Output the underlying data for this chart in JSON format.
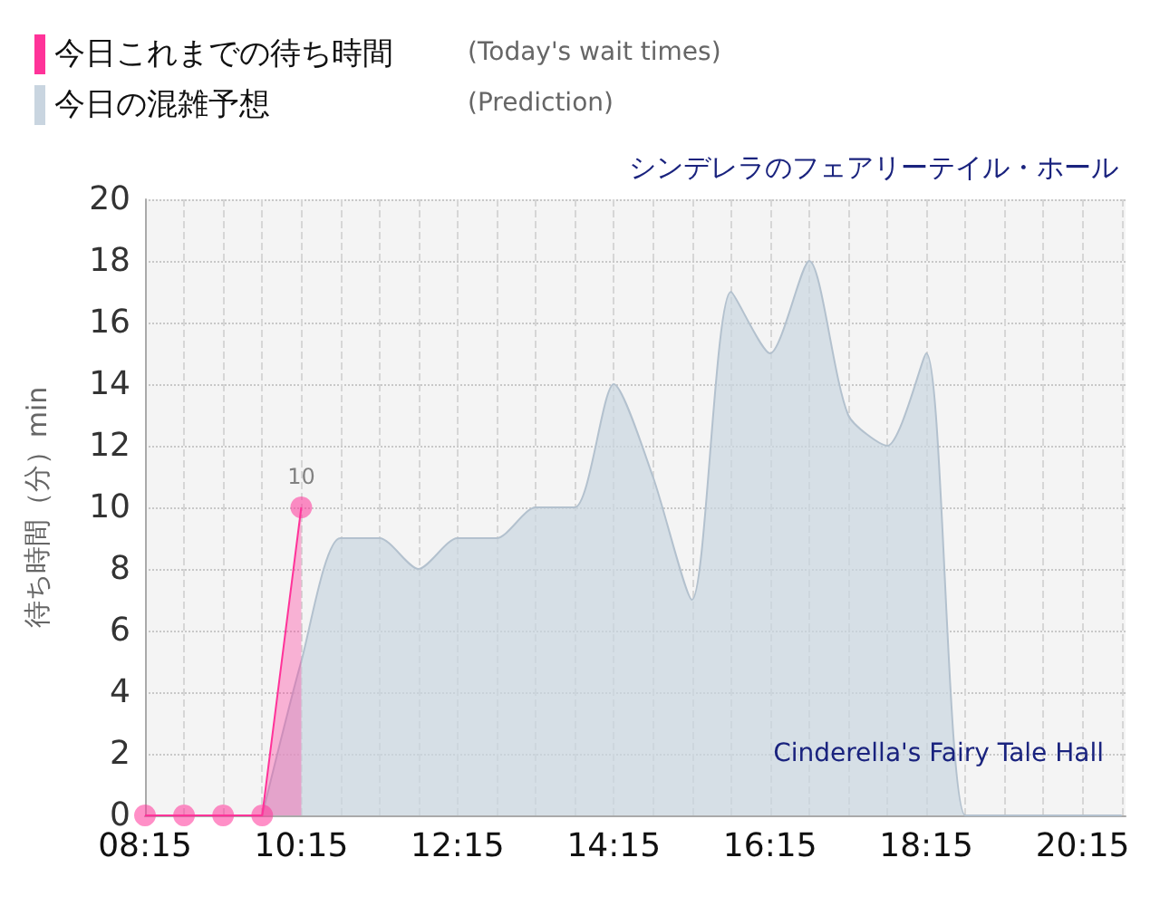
{
  "chart_data": {
    "type": "area",
    "title": "シンデレラのフェアリーテイル・ホール",
    "subtitle": "Cinderella's Fairy Tale Hall",
    "ylabel": "待ち時間（分）min",
    "annotations": [
      "(Today's wait times)",
      "(Prediction)"
    ],
    "xlim": [
      8.25,
      20.8
    ],
    "xticks": [
      {
        "value": 8.25,
        "label": "08:15"
      },
      {
        "value": 8.75,
        "label": null
      },
      {
        "value": 9.25,
        "label": null
      },
      {
        "value": 9.75,
        "label": null
      },
      {
        "value": 10.25,
        "label": "10:15"
      },
      {
        "value": 10.75,
        "label": null
      },
      {
        "value": 11.25,
        "label": null
      },
      {
        "value": 11.75,
        "label": null
      },
      {
        "value": 12.25,
        "label": "12:15"
      },
      {
        "value": 12.75,
        "label": null
      },
      {
        "value": 13.25,
        "label": null
      },
      {
        "value": 13.75,
        "label": null
      },
      {
        "value": 14.25,
        "label": "14:15"
      },
      {
        "value": 14.75,
        "label": null
      },
      {
        "value": 15.25,
        "label": null
      },
      {
        "value": 15.75,
        "label": null
      },
      {
        "value": 16.25,
        "label": "16:15"
      },
      {
        "value": 16.75,
        "label": null
      },
      {
        "value": 17.25,
        "label": null
      },
      {
        "value": 17.75,
        "label": null
      },
      {
        "value": 18.25,
        "label": "18:15"
      },
      {
        "value": 18.75,
        "label": null
      },
      {
        "value": 19.25,
        "label": null
      },
      {
        "value": 19.75,
        "label": null
      },
      {
        "value": 20.25,
        "label": "20:15"
      },
      {
        "value": 20.75,
        "label": null
      }
    ],
    "ylim": [
      0,
      20
    ],
    "yticks": [
      0,
      2,
      4,
      6,
      8,
      10,
      12,
      14,
      16,
      18,
      20
    ],
    "series": [
      {
        "name": "今日の混雑予想",
        "marker": "none",
        "color": "#c9d5e0",
        "x": [
          9.75,
          10.25,
          10.75,
          11.25,
          11.75,
          12.25,
          12.75,
          13.25,
          13.75,
          14.25,
          14.75,
          15.25,
          15.75,
          16.25,
          16.75,
          17.25,
          17.75,
          18.25,
          18.75,
          19.25,
          19.75,
          20.25,
          20.75
        ],
        "values": [
          0,
          5,
          9,
          9,
          8,
          9,
          9,
          10,
          10,
          14,
          11,
          7,
          17,
          15,
          18,
          13,
          12,
          15,
          0,
          0,
          0,
          0,
          0
        ]
      },
      {
        "name": "今日これまでの待ち時間",
        "marker": "circle",
        "color": "#ff3399",
        "x": [
          8.25,
          8.75,
          9.25,
          9.75,
          10.25
        ],
        "values": [
          0,
          0,
          0,
          0,
          10
        ],
        "value_labels": [
          null,
          null,
          null,
          null,
          "10"
        ]
      }
    ],
    "grid": true,
    "legend": "top left"
  }
}
